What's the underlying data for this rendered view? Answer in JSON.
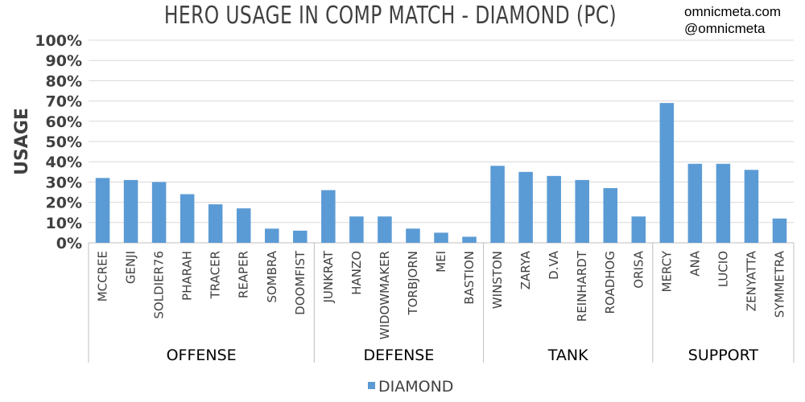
{
  "header": {
    "title": "HERO USAGE IN COMP MATCH - DIAMOND (PC)",
    "watermark_line1": "omnicmeta.com",
    "watermark_line2": "@omnicmeta"
  },
  "chart_data": {
    "type": "bar",
    "title": "HERO USAGE IN COMP MATCH - DIAMOND (PC)",
    "xlabel": "",
    "ylabel": "USAGE",
    "ylim": [
      0,
      100
    ],
    "yticks": [
      "0%",
      "10%",
      "20%",
      "30%",
      "40%",
      "50%",
      "60%",
      "70%",
      "80%",
      "90%",
      "100%"
    ],
    "grid": true,
    "legend_position": "bottom",
    "categories": [
      "MCCREE",
      "GENJI",
      "SOLDIER76",
      "PHARAH",
      "TRACER",
      "REAPER",
      "SOMBRA",
      "DOOMFIST",
      "JUNKRAT",
      "HANZO",
      "WIDOWMAKER",
      "TORBJORN",
      "MEI",
      "BASTION",
      "WINSTON",
      "ZARYA",
      "D.VA",
      "REINHARDT",
      "ROADHOG",
      "ORISA",
      "MERCY",
      "ANA",
      "LUCIO",
      "ZENYATTA",
      "SYMMETRA"
    ],
    "groups": [
      {
        "name": "OFFENSE",
        "count": 8
      },
      {
        "name": "DEFENSE",
        "count": 6
      },
      {
        "name": "TANK",
        "count": 6
      },
      {
        "name": "SUPPORT",
        "count": 5
      }
    ],
    "series": [
      {
        "name": "DIAMOND",
        "color": "#5b9bd5",
        "values": [
          32,
          31,
          30,
          24,
          19,
          17,
          7,
          6,
          26,
          13,
          13,
          7,
          5,
          3,
          38,
          35,
          33,
          31,
          27,
          13,
          69,
          39,
          39,
          36,
          12
        ]
      }
    ]
  }
}
